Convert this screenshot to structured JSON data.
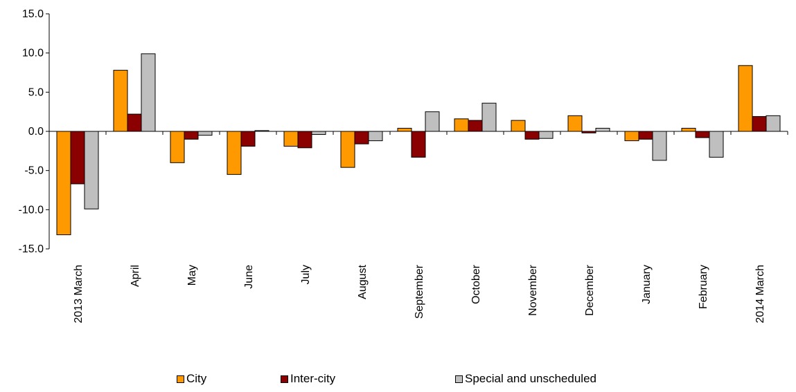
{
  "chart_data": {
    "type": "bar",
    "title": "",
    "xlabel": "",
    "ylabel": "",
    "ylim": [
      -15,
      15
    ],
    "yticks": [
      -15.0,
      -10.0,
      -5.0,
      0.0,
      5.0,
      10.0,
      15.0
    ],
    "ytick_labels": [
      "-15.0",
      "-10.0",
      "-5.0",
      "0.0",
      "5.0",
      "10.0",
      "15.0"
    ],
    "categories": [
      "2013 March",
      "April",
      "May",
      "June",
      "July",
      "August",
      "September",
      "October",
      "November",
      "December",
      "January",
      "February",
      "2014 March"
    ],
    "series": [
      {
        "name": "City",
        "color": "#FF9900",
        "values": [
          -13.2,
          7.8,
          -4.0,
          -5.5,
          -1.9,
          -4.6,
          0.4,
          1.6,
          1.4,
          2.0,
          -1.2,
          0.4,
          8.4
        ]
      },
      {
        "name": "Inter-city",
        "color": "#8B0000",
        "values": [
          -6.7,
          2.2,
          -1.0,
          -1.9,
          -2.1,
          -1.6,
          -3.3,
          1.4,
          -1.0,
          -0.2,
          -1.0,
          -0.8,
          1.9
        ]
      },
      {
        "name": "Special and unscheduled",
        "color": "#BFBFBF",
        "values": [
          -9.9,
          9.9,
          -0.5,
          0.1,
          -0.4,
          -1.2,
          2.5,
          3.6,
          -0.9,
          0.4,
          -3.7,
          -3.3,
          2.0
        ]
      }
    ],
    "grid": false,
    "legend_position": "bottom"
  }
}
